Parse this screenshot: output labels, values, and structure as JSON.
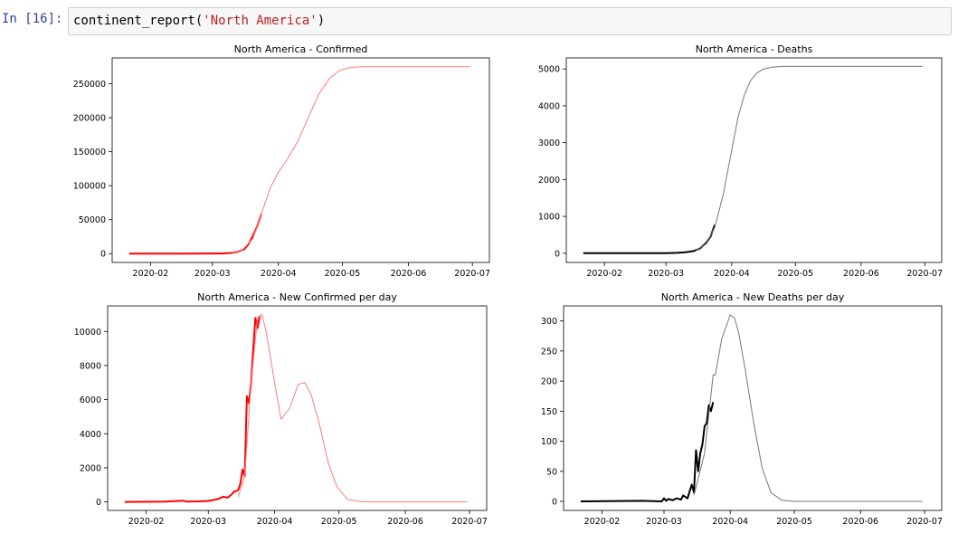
{
  "cell": {
    "prompt": "In [16]:",
    "code_func": "continent_report(",
    "code_arg": "'North America'",
    "code_close": ")"
  },
  "chart_data": [
    {
      "type": "line",
      "title": "North America - Confirmed",
      "xlabel": "",
      "ylabel": "",
      "xticks": [
        "2020-02",
        "2020-03",
        "2020-04",
        "2020-05",
        "2020-06",
        "2020-07"
      ],
      "xlim": [
        "2020-01-14",
        "2020-07-09"
      ],
      "ylim": [
        -13000,
        288000
      ],
      "yticks": [
        0,
        50000,
        100000,
        150000,
        200000,
        250000
      ],
      "yticklabels": [
        "0",
        "50000",
        "100000",
        "150000",
        "200000",
        "250000"
      ],
      "series": [
        {
          "role": "actual",
          "color": "#ff0000",
          "width": 2,
          "x": [
            "2020-01-22",
            "2020-02-15",
            "2020-03-01",
            "2020-03-05",
            "2020-03-10",
            "2020-03-13",
            "2020-03-16",
            "2020-03-18",
            "2020-03-20",
            "2020-03-22",
            "2020-03-24"
          ],
          "y": [
            0,
            20,
            120,
            250,
            1100,
            2800,
            6500,
            14000,
            26000,
            40000,
            58000
          ]
        },
        {
          "role": "projection",
          "color": "#ff7a7a",
          "width": 1,
          "x": [
            "2020-03-10",
            "2020-03-15",
            "2020-03-20",
            "2020-03-24",
            "2020-03-28",
            "2020-04-01",
            "2020-04-05",
            "2020-04-10",
            "2020-04-15",
            "2020-04-20",
            "2020-04-25",
            "2020-04-30",
            "2020-05-05",
            "2020-05-10",
            "2020-05-15",
            "2020-06-01",
            "2020-06-30"
          ],
          "y": [
            1200,
            5000,
            22000,
            58000,
            95000,
            120000,
            138000,
            165000,
            200000,
            235000,
            258000,
            270000,
            274000,
            275000,
            275000,
            275000,
            275000
          ]
        }
      ]
    },
    {
      "type": "line",
      "title": "North America - Deaths",
      "xlabel": "",
      "ylabel": "",
      "xticks": [
        "2020-02",
        "2020-03",
        "2020-04",
        "2020-05",
        "2020-06",
        "2020-07"
      ],
      "xlim": [
        "2020-01-14",
        "2020-07-09"
      ],
      "ylim": [
        -250,
        5300
      ],
      "yticks": [
        0,
        1000,
        2000,
        3000,
        4000,
        5000
      ],
      "yticklabels": [
        "0",
        "1000",
        "2000",
        "3000",
        "4000",
        "5000"
      ],
      "series": [
        {
          "role": "actual",
          "color": "#000000",
          "width": 2,
          "x": [
            "2020-01-22",
            "2020-02-15",
            "2020-03-01",
            "2020-03-06",
            "2020-03-10",
            "2020-03-14",
            "2020-03-17",
            "2020-03-20",
            "2020-03-22",
            "2020-03-24"
          ],
          "y": [
            0,
            0,
            2,
            10,
            25,
            60,
            130,
            280,
            450,
            770
          ]
        },
        {
          "role": "projection",
          "color": "#777777",
          "width": 1,
          "x": [
            "2020-03-15",
            "2020-03-20",
            "2020-03-24",
            "2020-03-28",
            "2020-04-01",
            "2020-04-04",
            "2020-04-07",
            "2020-04-10",
            "2020-04-13",
            "2020-04-16",
            "2020-04-20",
            "2020-04-25",
            "2020-05-01",
            "2020-06-30"
          ],
          "y": [
            80,
            250,
            700,
            1600,
            2800,
            3700,
            4300,
            4700,
            4900,
            5000,
            5050,
            5070,
            5070,
            5070
          ]
        }
      ]
    },
    {
      "type": "line",
      "title": "North America - New Confirmed per day",
      "xlabel": "",
      "ylabel": "",
      "xticks": [
        "2020-02",
        "2020-03",
        "2020-04",
        "2020-05",
        "2020-06",
        "2020-07"
      ],
      "xlim": [
        "2020-01-14",
        "2020-07-09"
      ],
      "ylim": [
        -500,
        11500
      ],
      "yticks": [
        0,
        2000,
        4000,
        6000,
        8000,
        10000
      ],
      "yticklabels": [
        "0",
        "2000",
        "4000",
        "6000",
        "8000",
        "10000"
      ],
      "series": [
        {
          "role": "actual",
          "color": "#ff0000",
          "width": 2,
          "x": [
            "2020-01-22",
            "2020-02-10",
            "2020-02-15",
            "2020-02-18",
            "2020-02-20",
            "2020-02-25",
            "2020-03-01",
            "2020-03-05",
            "2020-03-08",
            "2020-03-10",
            "2020-03-12",
            "2020-03-13",
            "2020-03-15",
            "2020-03-16",
            "2020-03-17",
            "2020-03-18",
            "2020-03-19",
            "2020-03-20",
            "2020-03-21",
            "2020-03-22",
            "2020-03-23",
            "2020-03-24",
            "2020-03-25"
          ],
          "y": [
            0,
            20,
            50,
            70,
            20,
            30,
            60,
            150,
            300,
            250,
            450,
            600,
            700,
            1100,
            1900,
            1500,
            6200,
            5800,
            7000,
            9000,
            10800,
            10200,
            10900
          ]
        },
        {
          "role": "projection",
          "color": "#ff7a7a",
          "width": 1,
          "x": [
            "2020-03-15",
            "2020-03-18",
            "2020-03-21",
            "2020-03-24",
            "2020-03-26",
            "2020-03-28",
            "2020-04-01",
            "2020-04-04",
            "2020-04-08",
            "2020-04-12",
            "2020-04-15",
            "2020-04-18",
            "2020-04-22",
            "2020-04-26",
            "2020-04-30",
            "2020-05-05",
            "2020-05-12",
            "2020-06-30"
          ],
          "y": [
            300,
            1500,
            7000,
            10800,
            11000,
            10000,
            7000,
            4850,
            5500,
            6900,
            7000,
            6300,
            4500,
            2300,
            900,
            150,
            0,
            0
          ]
        }
      ]
    },
    {
      "type": "line",
      "title": "North America - New Deaths per day",
      "xlabel": "",
      "ylabel": "",
      "xticks": [
        "2020-02",
        "2020-03",
        "2020-04",
        "2020-05",
        "2020-06",
        "2020-07"
      ],
      "xlim": [
        "2020-01-14",
        "2020-07-09"
      ],
      "ylim": [
        -15,
        325
      ],
      "yticks": [
        0,
        50,
        100,
        150,
        200,
        250,
        300
      ],
      "yticklabels": [
        "0",
        "50",
        "100",
        "150",
        "200",
        "250",
        "300"
      ],
      "series": [
        {
          "role": "actual",
          "color": "#000000",
          "width": 2,
          "x": [
            "2020-01-22",
            "2020-02-20",
            "2020-02-29",
            "2020-03-01",
            "2020-03-02",
            "2020-03-03",
            "2020-03-05",
            "2020-03-07",
            "2020-03-09",
            "2020-03-10",
            "2020-03-12",
            "2020-03-14",
            "2020-03-15",
            "2020-03-16",
            "2020-03-17",
            "2020-03-18",
            "2020-03-19",
            "2020-03-20",
            "2020-03-21",
            "2020-03-22",
            "2020-03-23",
            "2020-03-24"
          ],
          "y": [
            0,
            1,
            0,
            5,
            1,
            4,
            2,
            5,
            3,
            10,
            5,
            28,
            15,
            85,
            50,
            80,
            95,
            125,
            130,
            160,
            150,
            165
          ]
        },
        {
          "role": "projection",
          "color": "#777777",
          "width": 1,
          "x": [
            "2020-03-15",
            "2020-03-20",
            "2020-03-24",
            "2020-03-25",
            "2020-03-28",
            "2020-04-01",
            "2020-04-03",
            "2020-04-05",
            "2020-04-08",
            "2020-04-12",
            "2020-04-16",
            "2020-04-20",
            "2020-04-25",
            "2020-05-01",
            "2020-06-30"
          ],
          "y": [
            10,
            80,
            210,
            210,
            270,
            310,
            305,
            280,
            220,
            130,
            55,
            15,
            2,
            0,
            0
          ]
        }
      ]
    }
  ]
}
